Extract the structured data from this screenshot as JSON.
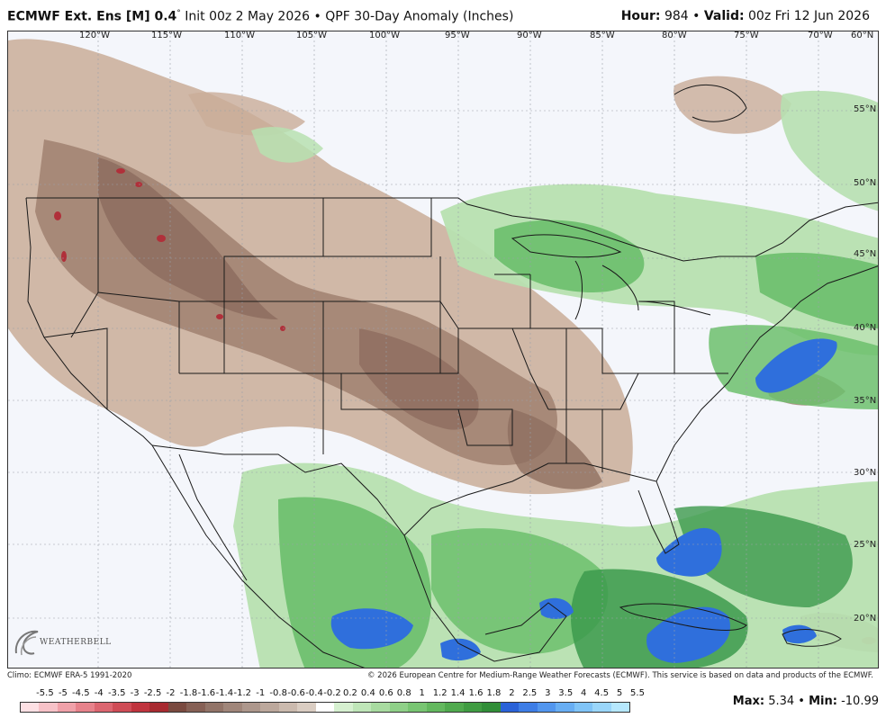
{
  "header": {
    "model": "ECMWF Ext. Ens [M] 0.4",
    "degree": "°",
    "init": " Init 00z 2 May 2026",
    "bullet": " • ",
    "product": "QPF 30-Day Anomaly (Inches)",
    "hour_label": "Hour:",
    "hour_value": " 984",
    "valid_label": "Valid:",
    "valid_value": " 00z Fri 12 Jun 2026"
  },
  "map": {
    "longitude_labels": [
      "120°W",
      "115°W",
      "110°W",
      "105°W",
      "100°W",
      "95°W",
      "90°W",
      "85°W",
      "80°W",
      "75°W",
      "70°W",
      "60°N"
    ],
    "latitude_labels": [
      "55°N",
      "50°N",
      "45°N",
      "40°N",
      "35°N",
      "30°N",
      "25°N",
      "20°N"
    ],
    "colors": {
      "dry_strong": "#8a4a3a",
      "dry_medium": "#a08070",
      "dry_light": "#c9ad98",
      "neutral": "#f4f6fb",
      "wet_light": "#b7e0b0",
      "wet_medium": "#6cbf6c",
      "wet_strong": "#3c9a4c",
      "very_wet": "#2f6fdc",
      "extreme_dry": "#b0303a"
    }
  },
  "watermark": {
    "text": "WEATHERBELL"
  },
  "footer": {
    "climo": "Climo: ECMWF ERA-5 1991-2020",
    "copyright": "© 2026 European Centre for Medium-Range Weather Forecasts (ECMWF). This service is based on data and products of the ECMWF."
  },
  "legend": {
    "ticks": [
      "-5.5",
      "-5",
      "-4.5",
      "-4",
      "-3.5",
      "-3",
      "-2.5",
      "-2",
      "-1.8",
      "-1.6",
      "-1.4",
      "-1.2",
      "-1",
      "-0.8",
      "-0.6",
      "-0.4",
      "-0.2",
      "0.2",
      "0.4",
      "0.6",
      "0.8",
      "1",
      "1.2",
      "1.4",
      "1.6",
      "1.8",
      "2",
      "2.5",
      "3",
      "3.5",
      "4",
      "4.5",
      "5",
      "5.5"
    ],
    "colors": [
      "#fde0e4",
      "#f7c2c8",
      "#f0a1a9",
      "#e7828b",
      "#dc6670",
      "#cf4c56",
      "#c0343e",
      "#a82a30",
      "#7a4a40",
      "#866055",
      "#927468",
      "#a0867a",
      "#ad978c",
      "#bca89c",
      "#cbbaae",
      "#dacdc2",
      "#ffffff",
      "#d6f0d0",
      "#bfe6b8",
      "#a8dba0",
      "#8fd088",
      "#78c572",
      "#63b85e",
      "#50aa4e",
      "#409c42",
      "#318e38",
      "#2a62d8",
      "#3d7de6",
      "#5296ee",
      "#68aef3",
      "#80c4f7",
      "#9ad6fa",
      "#b6e8fd"
    ],
    "max_label": "Max:",
    "max_value": " 5.34",
    "sep": " • ",
    "min_label": "Min:",
    "min_value": " -10.99"
  }
}
